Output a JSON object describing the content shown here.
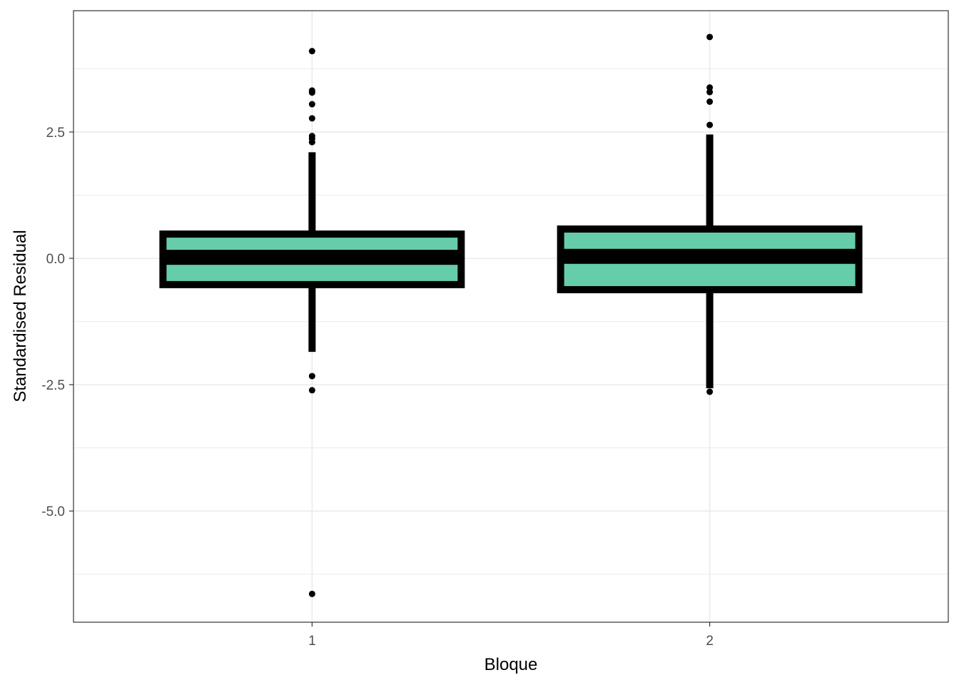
{
  "chart_data": {
    "type": "boxplot",
    "title": "",
    "xlabel": "Bloque",
    "ylabel": "Standardised Residual",
    "categories": [
      "1",
      "2"
    ],
    "ylim": [
      -7.2,
      4.9
    ],
    "y_ticks": [
      2.5,
      0.0,
      -2.5,
      -5.0
    ],
    "y_tick_labels": [
      "2.5",
      "0.0",
      "-2.5",
      "-5.0"
    ],
    "grid": true,
    "legend": "none",
    "fill_color": "#66CDAA",
    "line_color": "#000000",
    "boxes": [
      {
        "category": "1",
        "q1": -0.52,
        "median": 0.02,
        "q3": 0.48,
        "whisker_low": -1.85,
        "whisker_high": 2.1,
        "outliers": [
          4.1,
          3.32,
          3.28,
          3.05,
          2.77,
          2.42,
          2.37,
          2.3,
          -2.33,
          -2.61,
          -6.64
        ]
      },
      {
        "category": "2",
        "q1": -0.62,
        "median": 0.04,
        "q3": 0.58,
        "whisker_low": -2.57,
        "whisker_high": 2.45,
        "outliers": [
          4.38,
          3.38,
          3.29,
          3.1,
          2.64,
          -2.64
        ]
      }
    ]
  }
}
